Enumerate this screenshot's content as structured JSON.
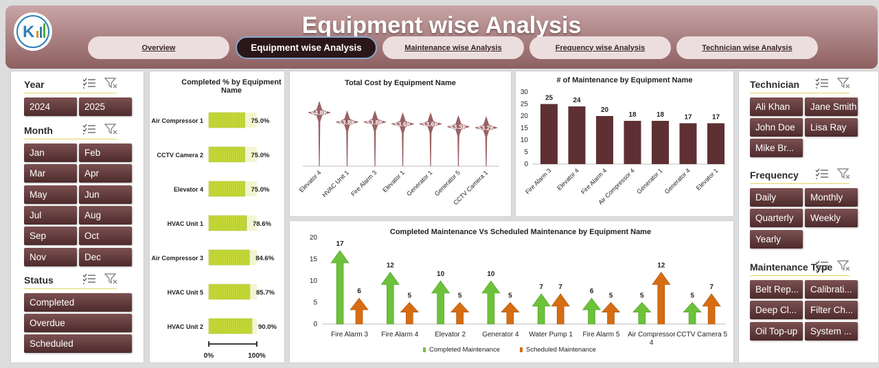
{
  "header": {
    "title": "Equipment wise Analysis",
    "tabs": [
      "Overview",
      "Equipment wise Analysis",
      "Maintenance wise Analysis",
      "Frequency  wise Analysis",
      "Technician  wise Analysis"
    ],
    "active_tab": 1
  },
  "colors": {
    "header_top": "#c9a5a6",
    "header_bottom": "#8d5f60",
    "slicer_button": "#5e3738",
    "bar_yellow_green": "#c8dc3c",
    "bar_maroon": "#5e3034",
    "completed_green": "#6cc23a",
    "scheduled_orange": "#d66d12",
    "star": "#9b6164"
  },
  "icons": {
    "multi_select": "multi-select-icon",
    "clear_filter": "clear-filter-icon",
    "logo": "logo-icon"
  },
  "slicers": {
    "year": {
      "title": "Year",
      "items": [
        "2024",
        "2025"
      ]
    },
    "month": {
      "title": "Month",
      "items": [
        "Jan",
        "Feb",
        "Mar",
        "Apr",
        "May",
        "Jun",
        "Jul",
        "Aug",
        "Sep",
        "Oct",
        "Nov",
        "Dec"
      ]
    },
    "status": {
      "title": "Status",
      "items": [
        "Completed",
        "Overdue",
        "Scheduled"
      ]
    },
    "technician": {
      "title": "Technician",
      "items": [
        "Ali Khan",
        "Jane Smith",
        "John Doe",
        "Lisa Ray",
        "Mike Br..."
      ]
    },
    "frequency": {
      "title": "Frequency",
      "items": [
        "Daily",
        "Monthly",
        "Quarterly",
        "Weekly",
        "Yearly"
      ]
    },
    "maint_type": {
      "title": "Maintenance Type",
      "items": [
        "Belt Rep...",
        "Calibrati...",
        "Deep Cl...",
        "Filter Ch...",
        "Oil Top-up",
        "System ..."
      ]
    }
  },
  "chart_data": [
    {
      "type": "bar",
      "orientation": "horizontal",
      "title": "Completed % by Equipment Name",
      "categories": [
        "Air Compressor 1",
        "CCTV Camera 2",
        "Elevator 4",
        "HVAC Unit 1",
        "Air Compressor 3",
        "HVAC Unit 5",
        "HVAC Unit 2"
      ],
      "values": [
        75.0,
        75.0,
        75.0,
        78.6,
        84.6,
        85.7,
        90.0
      ],
      "labels": [
        "75.0%",
        "75.0%",
        "75.0%",
        "78.6%",
        "84.6%",
        "85.7%",
        "90.0%"
      ],
      "xlim": [
        0,
        100
      ],
      "xticks": [
        "0%",
        "100%"
      ]
    },
    {
      "type": "scatter",
      "marker": "star-lollipop",
      "title": "Total Cost by Equipment Name",
      "categories": [
        "Elevator 4",
        "HVAC Unit 1",
        "Fire Alarm 3",
        "Elevator 1",
        "Generator 1",
        "Generator 5",
        "CCTV Camera 1"
      ],
      "values": [
        4.8,
        3.8,
        3.8,
        3.6,
        3.6,
        3.3,
        3.2
      ],
      "labels": [
        "$4.8K",
        "$3.8K",
        "$3.8K",
        "$3.6K",
        "$3.6K",
        "$3.3K",
        "$3.2K"
      ]
    },
    {
      "type": "bar",
      "title": "# of Maintenance by Equipment Name",
      "categories": [
        "Fire Alarm 3",
        "Elevator 4",
        "Fire Alarm 4",
        "Air Compressor 4",
        "Generator 1",
        "Generator 4",
        "Elevator 1"
      ],
      "values": [
        25,
        24,
        20,
        18,
        18,
        17,
        17
      ],
      "yticks": [
        "0",
        "5",
        "10",
        "15",
        "20",
        "25",
        "30"
      ],
      "ylim": [
        0,
        30
      ]
    },
    {
      "type": "bar",
      "marker": "arrow",
      "title": "Completed Maintenance Vs Scheduled Maintenance by Equipment Name",
      "categories": [
        "Fire Alarm 3",
        "Fire Alarm 4",
        "Elevator 2",
        "Generator 4",
        "Water Pump 1",
        "Fire Alarm 5",
        "Air Compressor 4",
        "CCTV Camera 5"
      ],
      "series": [
        {
          "name": "Completed Maintenance",
          "values": [
            17,
            12,
            10,
            10,
            7,
            6,
            5,
            5
          ]
        },
        {
          "name": "Scheduled Maintenance",
          "values": [
            6,
            5,
            5,
            5,
            7,
            5,
            12,
            7
          ]
        }
      ],
      "yticks": [
        "0",
        "5",
        "10",
        "15",
        "20"
      ],
      "ylim": [
        0,
        20
      ],
      "legend": "bottom"
    }
  ]
}
